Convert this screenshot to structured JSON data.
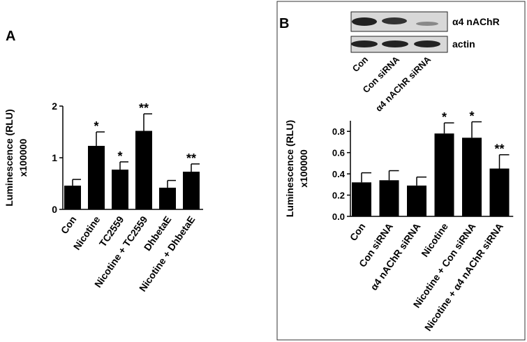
{
  "chart_data": [
    {
      "type": "bar",
      "panel": "A",
      "ylabel": [
        "Luminescence (RLU)",
        "x100000"
      ],
      "categories": [
        "Con",
        "Nicotine",
        "TC2559",
        "Nicotine + TC2559",
        "DhbetaE",
        "Nicotine + DhbetaE"
      ],
      "values": [
        0.46,
        1.23,
        0.77,
        1.52,
        0.42,
        0.73
      ],
      "errors": [
        0.12,
        0.27,
        0.15,
        0.33,
        0.14,
        0.15
      ],
      "annotations": [
        null,
        "*",
        "*",
        "**",
        null,
        "**"
      ],
      "color": "#000000",
      "ylim": [
        0,
        2
      ],
      "yticks": [
        0,
        1,
        2
      ]
    },
    {
      "type": "bar",
      "panel": "B",
      "ylabel": [
        "Luminescence (RLU)",
        "x100000"
      ],
      "categories": [
        "Con",
        "Con siRNA",
        "α4 nAChR siRNA",
        "Nicotine",
        "Nicotine + Con siRNA",
        "Nicotine + α4 nAChR siRNA"
      ],
      "values": [
        0.32,
        0.34,
        0.29,
        0.78,
        0.74,
        0.45
      ],
      "errors": [
        0.09,
        0.09,
        0.08,
        0.1,
        0.15,
        0.13
      ],
      "annotations": [
        null,
        null,
        null,
        "*",
        "*",
        "**"
      ],
      "color": "#000000",
      "ylim": [
        0,
        0.9
      ],
      "yticks": [
        {
          "value": 0,
          "label": "0.0"
        },
        0.2,
        0.4,
        0.6,
        0.8
      ]
    }
  ],
  "western_blot": {
    "rows": [
      "α4 nAChR",
      "actin"
    ],
    "lanes": [
      "Con",
      "Con siRNA",
      "α4 nAChR siRNA"
    ]
  }
}
